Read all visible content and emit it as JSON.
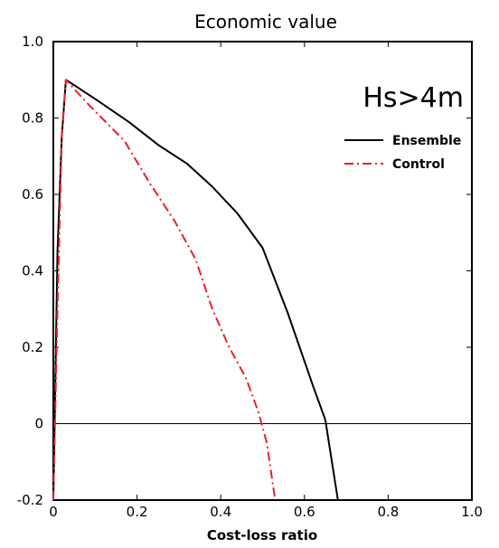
{
  "chart_data": {
    "type": "line",
    "title": "Economic value",
    "xlabel": "Cost-loss ratio",
    "ylabel": "",
    "xlim": [
      0,
      1
    ],
    "ylim": [
      -0.2,
      1
    ],
    "xticks": [
      0,
      0.2,
      0.4,
      0.6,
      0.8,
      1
    ],
    "xtick_labels": [
      "0",
      "0.2",
      "0.4",
      "0.6",
      "0.8",
      "1.0"
    ],
    "yticks": [
      -0.2,
      0,
      0.2,
      0.4,
      0.6,
      0.8,
      1
    ],
    "ytick_labels": [
      "-0.2",
      "0",
      "0.2",
      "0.4",
      "0.6",
      "0.8",
      "1.0"
    ],
    "zero_line": true,
    "grid": false,
    "annotation": "Hs>4m",
    "legend_position": "top-right",
    "series": [
      {
        "name": "Ensemble",
        "color": "#000000",
        "style": "solid",
        "x": [
          0.0,
          0.01,
          0.02,
          0.03,
          0.1,
          0.18,
          0.25,
          0.32,
          0.38,
          0.44,
          0.5,
          0.56,
          0.62,
          0.65,
          0.68
        ],
        "y": [
          -0.2,
          0.45,
          0.75,
          0.9,
          0.85,
          0.79,
          0.73,
          0.68,
          0.62,
          0.55,
          0.46,
          0.29,
          0.1,
          0.01,
          -0.2
        ]
      },
      {
        "name": "Control",
        "color": "#e8202a",
        "style": "dashdot",
        "x": [
          0.0,
          0.01,
          0.02,
          0.03,
          0.08,
          0.17,
          0.23,
          0.29,
          0.34,
          0.38,
          0.42,
          0.46,
          0.49,
          0.51,
          0.53
        ],
        "y": [
          -0.2,
          0.3,
          0.75,
          0.9,
          0.84,
          0.74,
          0.63,
          0.53,
          0.43,
          0.3,
          0.2,
          0.12,
          0.03,
          -0.05,
          -0.2
        ]
      }
    ]
  }
}
